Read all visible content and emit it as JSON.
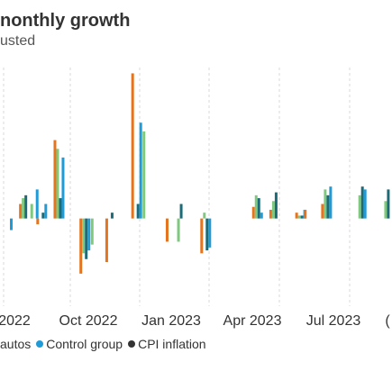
{
  "title": "nonthly growth",
  "subtitle": "usted",
  "colors": {
    "autos": "#7fc97f",
    "control_group": "#1f9bd7",
    "cpi_inflation": "#e4741f",
    "dark": "#1e6b78",
    "grid": "#d9d9d9"
  },
  "legend": [
    {
      "label": "autos",
      "color_key": "autos",
      "marker": false
    },
    {
      "label": "Control group",
      "color_key": "control_group",
      "marker": true
    },
    {
      "label": "CPI inflation",
      "color_key": "cpi_inflation",
      "marker": true
    }
  ],
  "chart_data": {
    "type": "bar",
    "title": "nonthly growth",
    "subtitle": "usted",
    "xlabel": "",
    "ylabel": "",
    "x_ticks": [
      "2022",
      "Oct 2022",
      "Jan 2023",
      "Apr 2023",
      "Jul 2023",
      "("
    ],
    "ylim": [
      -1.2,
      2.6
    ],
    "grid": true,
    "legend_position": "bottom",
    "series_order": [
      "cpi_inflation",
      "autos",
      "dark",
      "control_group"
    ],
    "months": [
      {
        "values": {
          "autos": 0.0,
          "cpi_inflation": 0.0,
          "dark": 0.0,
          "control_group": -0.2
        }
      },
      {
        "values": {
          "autos": 0.0,
          "cpi_inflation": 0.0,
          "dark": 0.0,
          "control_group": 0.0
        }
      },
      {
        "values": {
          "autos": 0.35,
          "cpi_inflation": 0.25,
          "dark": 0.4,
          "control_group": 0.0
        }
      },
      {
        "values": {
          "autos": 0.25,
          "cpi_inflation": 0.0,
          "dark": 0.0,
          "control_group": 0.5
        }
      },
      {
        "values": {
          "autos": 0.0,
          "cpi_inflation": -0.1,
          "dark": 0.1,
          "control_group": 0.25
        }
      },
      {
        "values": {
          "autos": 0.0,
          "cpi_inflation": 0.0,
          "dark": 0.0,
          "control_group": 0.0
        }
      },
      {
        "values": {
          "autos": 1.2,
          "cpi_inflation": 1.35,
          "dark": 0.35,
          "control_group": 1.05
        }
      },
      {
        "values": {
          "autos": 0.0,
          "cpi_inflation": 0.0,
          "dark": 0.0,
          "control_group": 0.0
        }
      },
      {
        "values": {
          "autos": 0.0,
          "cpi_inflation": 0.0,
          "dark": 0.0,
          "control_group": 0.0
        }
      },
      {
        "values": {
          "autos": -0.6,
          "cpi_inflation": -0.95,
          "dark": -0.7,
          "control_group": -0.55
        }
      },
      {
        "values": {
          "autos": -0.45,
          "cpi_inflation": 0.0,
          "dark": 0.0,
          "control_group": 0.0
        }
      },
      {
        "values": {
          "autos": 0.0,
          "cpi_inflation": 0.0,
          "dark": 0.0,
          "control_group": 0.0
        }
      },
      {
        "values": {
          "autos": 0.0,
          "cpi_inflation": -0.75,
          "dark": 0.1,
          "control_group": 0.0
        }
      },
      {
        "values": {
          "autos": 0.0,
          "cpi_inflation": 0.0,
          "dark": 0.0,
          "control_group": 0.0
        }
      },
      {
        "values": {
          "autos": 0.0,
          "cpi_inflation": 0.0,
          "dark": 0.0,
          "control_group": 0.0
        }
      },
      {
        "values": {
          "autos": 0.0,
          "cpi_inflation": 2.5,
          "dark": 0.25,
          "control_group": 1.65
        }
      },
      {
        "values": {
          "autos": 1.5,
          "cpi_inflation": 0.0,
          "dark": 0.0,
          "control_group": 0.0
        }
      },
      {
        "values": {
          "autos": 0.0,
          "cpi_inflation": 0.0,
          "dark": 0.0,
          "control_group": 0.0
        }
      },
      {
        "values": {
          "autos": 0.0,
          "cpi_inflation": 0.0,
          "dark": 0.0,
          "control_group": 0.0
        }
      },
      {
        "values": {
          "autos": 0.0,
          "cpi_inflation": -0.4,
          "dark": 0.0,
          "control_group": 0.0
        }
      },
      {
        "values": {
          "autos": -0.4,
          "cpi_inflation": 0.0,
          "dark": 0.25,
          "control_group": 0.0
        }
      },
      {
        "values": {
          "autos": 0.0,
          "cpi_inflation": 0.0,
          "dark": 0.0,
          "control_group": 0.0
        }
      },
      {
        "values": {
          "autos": 0.0,
          "cpi_inflation": 0.0,
          "dark": 0.0,
          "control_group": 0.0
        }
      },
      {
        "values": {
          "autos": 0.1,
          "cpi_inflation": -0.6,
          "dark": -0.55,
          "control_group": -0.5
        }
      },
      {
        "values": {
          "autos": 0.0,
          "cpi_inflation": 0.0,
          "dark": 0.0,
          "control_group": 0.0
        }
      },
      {
        "values": {
          "autos": 0.0,
          "cpi_inflation": 0.0,
          "dark": 0.0,
          "control_group": 0.0
        }
      },
      {
        "values": {
          "autos": 0.0,
          "cpi_inflation": 0.0,
          "dark": 0.0,
          "control_group": 0.0
        }
      },
      {
        "values": {
          "autos": 0.0,
          "cpi_inflation": 0.0,
          "dark": 0.0,
          "control_group": 0.0
        }
      },
      {
        "values": {
          "autos": 0.0,
          "cpi_inflation": 0.0,
          "dark": 0.0,
          "control_group": 0.0
        }
      },
      {
        "values": {
          "autos": 0.4,
          "cpi_inflation": 0.2,
          "dark": 0.35,
          "control_group": 0.1
        }
      },
      {
        "values": {
          "autos": 0.0,
          "cpi_inflation": 0.0,
          "dark": 0.0,
          "control_group": 0.0
        }
      },
      {
        "values": {
          "autos": 0.3,
          "cpi_inflation": 0.15,
          "dark": 0.45,
          "control_group": 0.0
        }
      },
      {
        "values": {
          "autos": 0.0,
          "cpi_inflation": 0.0,
          "dark": 0.0,
          "control_group": 0.0
        }
      },
      {
        "values": {
          "autos": 0.0,
          "cpi_inflation": 0.0,
          "dark": 0.0,
          "control_group": 0.0
        }
      },
      {
        "values": {
          "autos": 0.05,
          "cpi_inflation": 0.1,
          "dark": 0.05,
          "control_group": 0.15
        }
      },
      {
        "values": {
          "autos": 0.0,
          "cpi_inflation": 0.15,
          "dark": 0.0,
          "control_group": 0.0
        }
      },
      {
        "values": {
          "autos": 0.0,
          "cpi_inflation": 0.0,
          "dark": 0.0,
          "control_group": 0.0
        }
      },
      {
        "values": {
          "autos": 0.5,
          "cpi_inflation": 0.25,
          "dark": 0.4,
          "control_group": 0.55
        }
      },
      {
        "values": {
          "autos": 0.0,
          "cpi_inflation": 0.0,
          "dark": 0.0,
          "control_group": 0.0
        }
      },
      {
        "values": {
          "autos": 0.0,
          "cpi_inflation": 0.0,
          "dark": 0.0,
          "control_group": 0.0
        }
      },
      {
        "values": {
          "autos": 0.0,
          "cpi_inflation": 0.0,
          "dark": 0.0,
          "control_group": 0.0
        }
      },
      {
        "values": {
          "autos": 0.4,
          "cpi_inflation": 0.0,
          "dark": 0.55,
          "control_group": 0.5
        }
      },
      {
        "values": {
          "autos": 0.0,
          "cpi_inflation": 0.0,
          "dark": 0.0,
          "control_group": 0.0
        }
      },
      {
        "values": {
          "autos": 0.0,
          "cpi_inflation": 0.0,
          "dark": 0.0,
          "control_group": 0.0
        }
      },
      {
        "values": {
          "autos": 0.3,
          "cpi_inflation": 0.0,
          "dark": 0.5,
          "control_group": 0.0
        }
      }
    ]
  }
}
